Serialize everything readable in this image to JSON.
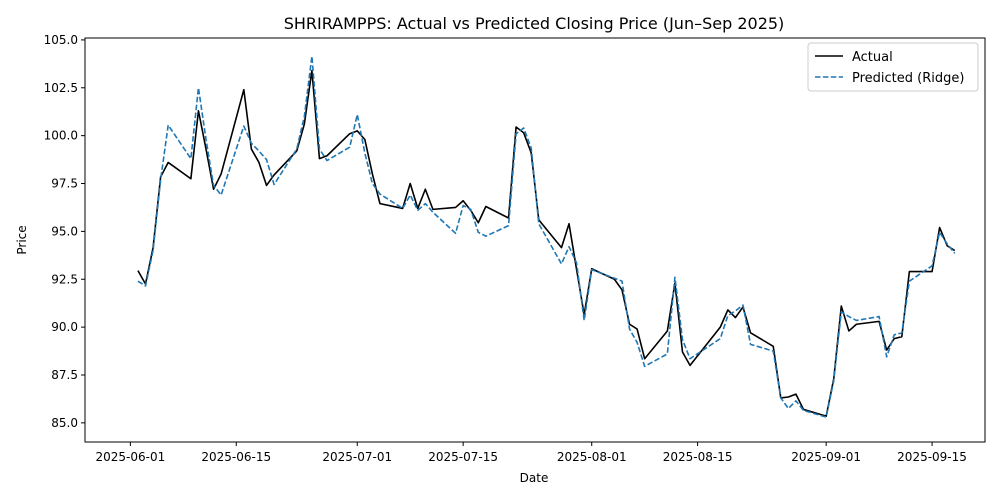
{
  "chart_data": {
    "type": "line",
    "title": "SHRIRAMPPS: Actual vs Predicted Closing Price (Jun–Sep 2025)",
    "xlabel": "Date",
    "ylabel": "Price",
    "xlim": [
      "2025-05-26",
      "2025-09-22"
    ],
    "ylim": [
      84.0,
      105.1
    ],
    "x_ticks": [
      "2025-06-01",
      "2025-06-15",
      "2025-07-01",
      "2025-07-15",
      "2025-08-01",
      "2025-08-15",
      "2025-09-01",
      "2025-09-15"
    ],
    "x_tick_labels": [
      "2025-06-01",
      "2025-06-15",
      "2025-07-01",
      "2025-07-15",
      "2025-08-01",
      "2025-08-15",
      "2025-09-01",
      "2025-09-15"
    ],
    "y_ticks": [
      85.0,
      87.5,
      90.0,
      92.5,
      95.0,
      97.5,
      100.0,
      102.5,
      105.0
    ],
    "y_tick_labels": [
      "85.0",
      "87.5",
      "90.0",
      "92.5",
      "95.0",
      "97.5",
      "100.0",
      "102.5",
      "105.0"
    ],
    "grid": false,
    "legend_position": "top-right",
    "series": [
      {
        "name": "Actual",
        "color": "#000000",
        "style": "solid",
        "points": [
          [
            "2025-06-02",
            92.95
          ],
          [
            "2025-06-03",
            92.25
          ],
          [
            "2025-06-04",
            94.15
          ],
          [
            "2025-06-05",
            97.85
          ],
          [
            "2025-06-06",
            98.6
          ],
          [
            "2025-06-09",
            97.75
          ],
          [
            "2025-06-10",
            101.3
          ],
          [
            "2025-06-11",
            99.3
          ],
          [
            "2025-06-12",
            97.2
          ],
          [
            "2025-06-13",
            98.0
          ],
          [
            "2025-06-16",
            102.4
          ],
          [
            "2025-06-17",
            99.3
          ],
          [
            "2025-06-18",
            98.6
          ],
          [
            "2025-06-19",
            97.4
          ],
          [
            "2025-06-20",
            97.95
          ],
          [
            "2025-06-23",
            99.2
          ],
          [
            "2025-06-24",
            100.6
          ],
          [
            "2025-06-25",
            103.4
          ],
          [
            "2025-06-26",
            98.8
          ],
          [
            "2025-06-27",
            98.95
          ],
          [
            "2025-06-30",
            100.1
          ],
          [
            "2025-07-01",
            100.25
          ],
          [
            "2025-07-02",
            99.8
          ],
          [
            "2025-07-03",
            98.0
          ],
          [
            "2025-07-04",
            96.45
          ],
          [
            "2025-07-07",
            96.2
          ],
          [
            "2025-07-08",
            97.5
          ],
          [
            "2025-07-09",
            96.2
          ],
          [
            "2025-07-10",
            97.2
          ],
          [
            "2025-07-11",
            96.15
          ],
          [
            "2025-07-14",
            96.25
          ],
          [
            "2025-07-15",
            96.6
          ],
          [
            "2025-07-16",
            96.1
          ],
          [
            "2025-07-17",
            95.45
          ],
          [
            "2025-07-18",
            96.3
          ],
          [
            "2025-07-21",
            95.7
          ],
          [
            "2025-07-22",
            100.45
          ],
          [
            "2025-07-23",
            100.15
          ],
          [
            "2025-07-24",
            99.1
          ],
          [
            "2025-07-25",
            95.6
          ],
          [
            "2025-07-28",
            94.15
          ],
          [
            "2025-07-29",
            95.4
          ],
          [
            "2025-07-30",
            93.0
          ],
          [
            "2025-07-31",
            90.65
          ],
          [
            "2025-08-01",
            93.05
          ],
          [
            "2025-08-04",
            92.5
          ],
          [
            "2025-08-05",
            91.95
          ],
          [
            "2025-08-06",
            90.15
          ],
          [
            "2025-08-07",
            89.9
          ],
          [
            "2025-08-08",
            88.35
          ],
          [
            "2025-08-11",
            89.8
          ],
          [
            "2025-08-12",
            92.3
          ],
          [
            "2025-08-13",
            88.7
          ],
          [
            "2025-08-14",
            88.0
          ],
          [
            "2025-08-18",
            90.0
          ],
          [
            "2025-08-19",
            90.9
          ],
          [
            "2025-08-20",
            90.5
          ],
          [
            "2025-08-21",
            91.05
          ],
          [
            "2025-08-22",
            89.7
          ],
          [
            "2025-08-25",
            89.0
          ],
          [
            "2025-08-26",
            86.3
          ],
          [
            "2025-08-27",
            86.35
          ],
          [
            "2025-08-28",
            86.5
          ],
          [
            "2025-08-29",
            85.7
          ],
          [
            "2025-09-01",
            85.35
          ],
          [
            "2025-09-02",
            87.3
          ],
          [
            "2025-09-03",
            91.1
          ],
          [
            "2025-09-04",
            89.8
          ],
          [
            "2025-09-05",
            90.15
          ],
          [
            "2025-09-08",
            90.3
          ],
          [
            "2025-09-09",
            88.8
          ],
          [
            "2025-09-10",
            89.4
          ],
          [
            "2025-09-11",
            89.5
          ],
          [
            "2025-09-12",
            92.9
          ],
          [
            "2025-09-15",
            92.9
          ],
          [
            "2025-09-16",
            95.2
          ],
          [
            "2025-09-17",
            94.25
          ],
          [
            "2025-09-18",
            94.0
          ]
        ]
      },
      {
        "name": "Predicted (Ridge)",
        "color": "#1f77b4",
        "style": "dashed",
        "points": [
          [
            "2025-06-02",
            92.4
          ],
          [
            "2025-06-03",
            92.15
          ],
          [
            "2025-06-04",
            94.0
          ],
          [
            "2025-06-05",
            97.7
          ],
          [
            "2025-06-06",
            100.55
          ],
          [
            "2025-06-09",
            98.8
          ],
          [
            "2025-06-10",
            102.5
          ],
          [
            "2025-06-11",
            99.8
          ],
          [
            "2025-06-12",
            97.4
          ],
          [
            "2025-06-13",
            96.9
          ],
          [
            "2025-06-16",
            100.5
          ],
          [
            "2025-06-17",
            99.6
          ],
          [
            "2025-06-18",
            99.2
          ],
          [
            "2025-06-19",
            98.75
          ],
          [
            "2025-06-20",
            97.45
          ],
          [
            "2025-06-23",
            99.3
          ],
          [
            "2025-06-24",
            101.0
          ],
          [
            "2025-06-25",
            104.15
          ],
          [
            "2025-06-26",
            99.3
          ],
          [
            "2025-06-27",
            98.7
          ],
          [
            "2025-06-30",
            99.4
          ],
          [
            "2025-07-01",
            101.1
          ],
          [
            "2025-07-02",
            99.1
          ],
          [
            "2025-07-03",
            97.5
          ],
          [
            "2025-07-04",
            96.95
          ],
          [
            "2025-07-07",
            96.2
          ],
          [
            "2025-07-08",
            96.9
          ],
          [
            "2025-07-09",
            96.1
          ],
          [
            "2025-07-10",
            96.45
          ],
          [
            "2025-07-11",
            96.0
          ],
          [
            "2025-07-14",
            94.9
          ],
          [
            "2025-07-15",
            96.35
          ],
          [
            "2025-07-16",
            96.15
          ],
          [
            "2025-07-17",
            94.95
          ],
          [
            "2025-07-18",
            94.75
          ],
          [
            "2025-07-21",
            95.3
          ],
          [
            "2025-07-22",
            100.1
          ],
          [
            "2025-07-23",
            100.4
          ],
          [
            "2025-07-24",
            99.35
          ],
          [
            "2025-07-25",
            95.4
          ],
          [
            "2025-07-28",
            93.3
          ],
          [
            "2025-07-29",
            94.2
          ],
          [
            "2025-07-30",
            93.35
          ],
          [
            "2025-07-31",
            90.35
          ],
          [
            "2025-08-01",
            93.0
          ],
          [
            "2025-08-04",
            92.55
          ],
          [
            "2025-08-05",
            92.4
          ],
          [
            "2025-08-06",
            89.9
          ],
          [
            "2025-08-07",
            89.2
          ],
          [
            "2025-08-08",
            87.95
          ],
          [
            "2025-08-11",
            88.6
          ],
          [
            "2025-08-12",
            92.6
          ],
          [
            "2025-08-13",
            89.35
          ],
          [
            "2025-08-14",
            88.35
          ],
          [
            "2025-08-18",
            89.4
          ],
          [
            "2025-08-19",
            90.6
          ],
          [
            "2025-08-20",
            90.85
          ],
          [
            "2025-08-21",
            91.15
          ],
          [
            "2025-08-22",
            89.1
          ],
          [
            "2025-08-25",
            88.75
          ],
          [
            "2025-08-26",
            86.3
          ],
          [
            "2025-08-27",
            85.75
          ],
          [
            "2025-08-28",
            86.15
          ],
          [
            "2025-08-29",
            85.65
          ],
          [
            "2025-09-01",
            85.3
          ],
          [
            "2025-09-02",
            87.2
          ],
          [
            "2025-09-03",
            90.8
          ],
          [
            "2025-09-04",
            90.55
          ],
          [
            "2025-09-05",
            90.35
          ],
          [
            "2025-09-08",
            90.55
          ],
          [
            "2025-09-09",
            88.45
          ],
          [
            "2025-09-10",
            89.6
          ],
          [
            "2025-09-11",
            89.7
          ],
          [
            "2025-09-12",
            92.4
          ],
          [
            "2025-09-15",
            93.2
          ],
          [
            "2025-09-16",
            94.95
          ],
          [
            "2025-09-17",
            94.35
          ],
          [
            "2025-09-18",
            93.85
          ]
        ]
      }
    ]
  }
}
